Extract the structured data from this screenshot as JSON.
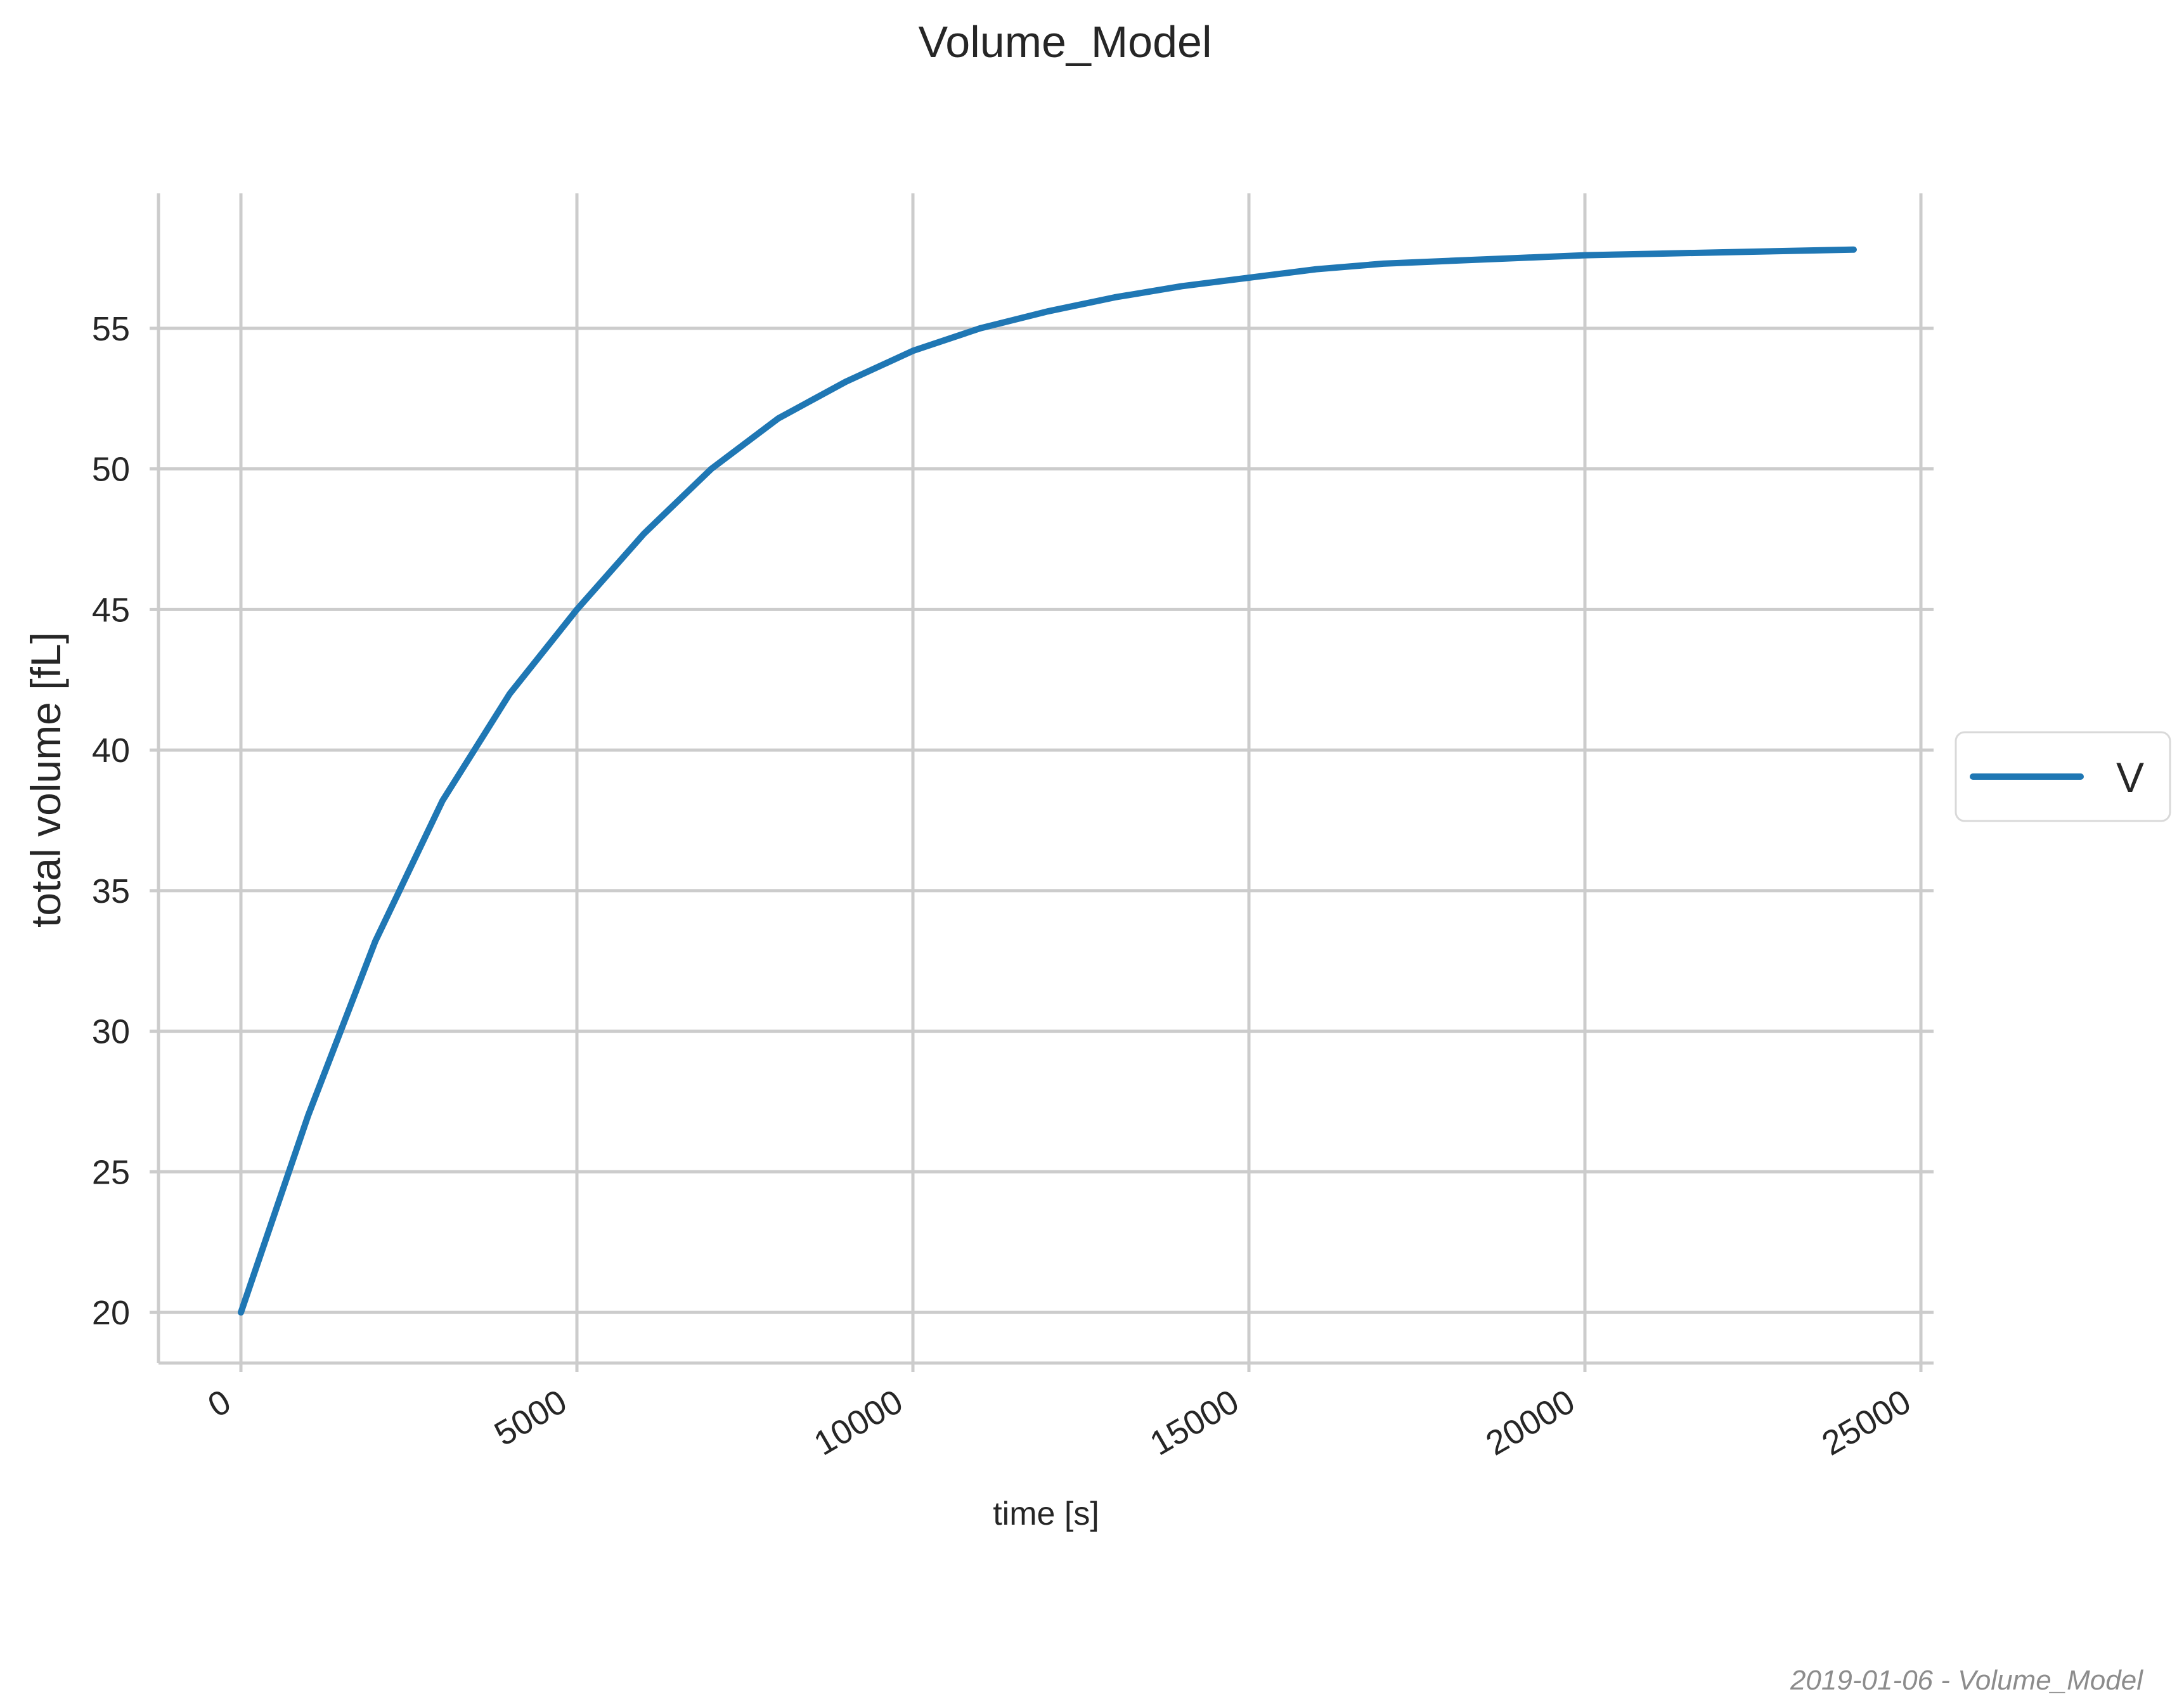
{
  "chart_data": {
    "type": "line",
    "title": "Volume_Model",
    "xlabel": "time [s]",
    "ylabel": "total volume [fL]",
    "xlim": [
      -2400,
      50400
    ],
    "ylim": [
      18.2,
      59.8
    ],
    "x_ticks": [
      0,
      5000,
      10000,
      15000,
      20000,
      25000
    ],
    "y_ticks": [
      20,
      25,
      30,
      35,
      40,
      45,
      50,
      55
    ],
    "x_tick_labels": [
      "0",
      "5000",
      "10000",
      "15000",
      "20000",
      "25000"
    ],
    "y_tick_labels": [
      "20",
      "25",
      "30",
      "35",
      "40",
      "45",
      "50",
      "55"
    ],
    "x_tick_rotation_deg": 30,
    "grid": true,
    "legend_position": "center-right-outside",
    "series": [
      {
        "name": "V",
        "color": "#1f77b4",
        "x": [
          0,
          1000,
          2000,
          3000,
          4000,
          5000,
          6000,
          7000,
          8000,
          9000,
          10000,
          11000,
          12000,
          13000,
          14000,
          15000,
          16000,
          17000,
          18000,
          19000,
          20000,
          21000,
          22000,
          23000,
          24000
        ],
        "y": [
          20.0,
          27.0,
          33.2,
          38.2,
          42.0,
          45.0,
          47.7,
          50.0,
          51.8,
          53.1,
          54.2,
          55.0,
          55.6,
          56.1,
          56.5,
          56.8,
          57.1,
          57.3,
          57.4,
          57.5,
          57.6,
          57.65,
          57.7,
          57.75,
          57.8
        ]
      }
    ]
  },
  "footer": {
    "caption": "2019-01-06 - Volume_Model"
  }
}
